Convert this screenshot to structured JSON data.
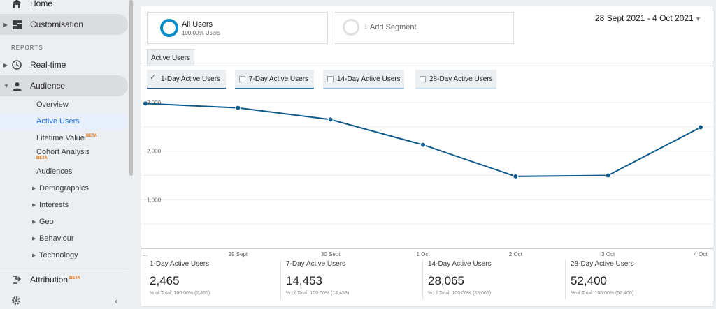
{
  "sidebar": {
    "home": "Home",
    "customisation": "Customisation",
    "reports_header": "REPORTS",
    "realtime": "Real-time",
    "audience": "Audience",
    "audience_items": {
      "overview": "Overview",
      "active_users": "Active Users",
      "lifetime_value": "Lifetime Value",
      "cohort_analysis": "Cohort Analysis",
      "audiences": "Audiences",
      "demographics": "Demographics",
      "interests": "Interests",
      "geo": "Geo",
      "behaviour": "Behaviour",
      "technology": "Technology"
    },
    "attribution": "Attribution",
    "beta": "BETA"
  },
  "segments": {
    "all_users": "All Users",
    "all_users_pct": "100.00% Users",
    "add_segment": "+ Add Segment"
  },
  "date_range": "28 Sept 2021 - 4 Oct 2021",
  "tab": "Active Users",
  "metrics": [
    {
      "label": "1-Day Active Users",
      "checked": true,
      "color": "#1a5d8a"
    },
    {
      "label": "7-Day Active Users",
      "checked": false,
      "color": "#1f7ab0"
    },
    {
      "label": "14-Day Active Users",
      "checked": false,
      "color": "#8fbfe0"
    },
    {
      "label": "28-Day Active Users",
      "checked": false,
      "color": "#c5def0"
    }
  ],
  "chart_data": {
    "type": "line",
    "x": [
      "...",
      "29 Sept",
      "30 Sept",
      "1 Oct",
      "2 Oct",
      "3 Oct",
      "4 Oct"
    ],
    "series": [
      {
        "values": [
          2980,
          2890,
          2650,
          2130,
          1480,
          1500,
          2490
        ]
      }
    ],
    "y_ticks": [
      "3,000",
      "2,000",
      "1,000"
    ],
    "ylim": [
      0,
      3000
    ],
    "line_color": "#0e5a8a"
  },
  "stats": [
    {
      "name": "1-Day Active Users",
      "value": "2,465",
      "total": "% of Total: 100.00% (2,465)"
    },
    {
      "name": "7-Day Active Users",
      "value": "14,453",
      "total": "% of Total: 100.00% (14,453)"
    },
    {
      "name": "14-Day Active Users",
      "value": "28,065",
      "total": "% of Total: 100.00% (28,065)"
    },
    {
      "name": "28-Day Active Users",
      "value": "52,400",
      "total": "% of Total: 100.00% (52,400)"
    }
  ],
  "colors": {
    "accent": "#1a73e8",
    "beta": "#e8710a"
  },
  "icons": [
    "home-icon",
    "dashboard-icon",
    "clock-icon",
    "person-icon",
    "attribution-icon",
    "gear-icon",
    "chevron-left-icon"
  ]
}
